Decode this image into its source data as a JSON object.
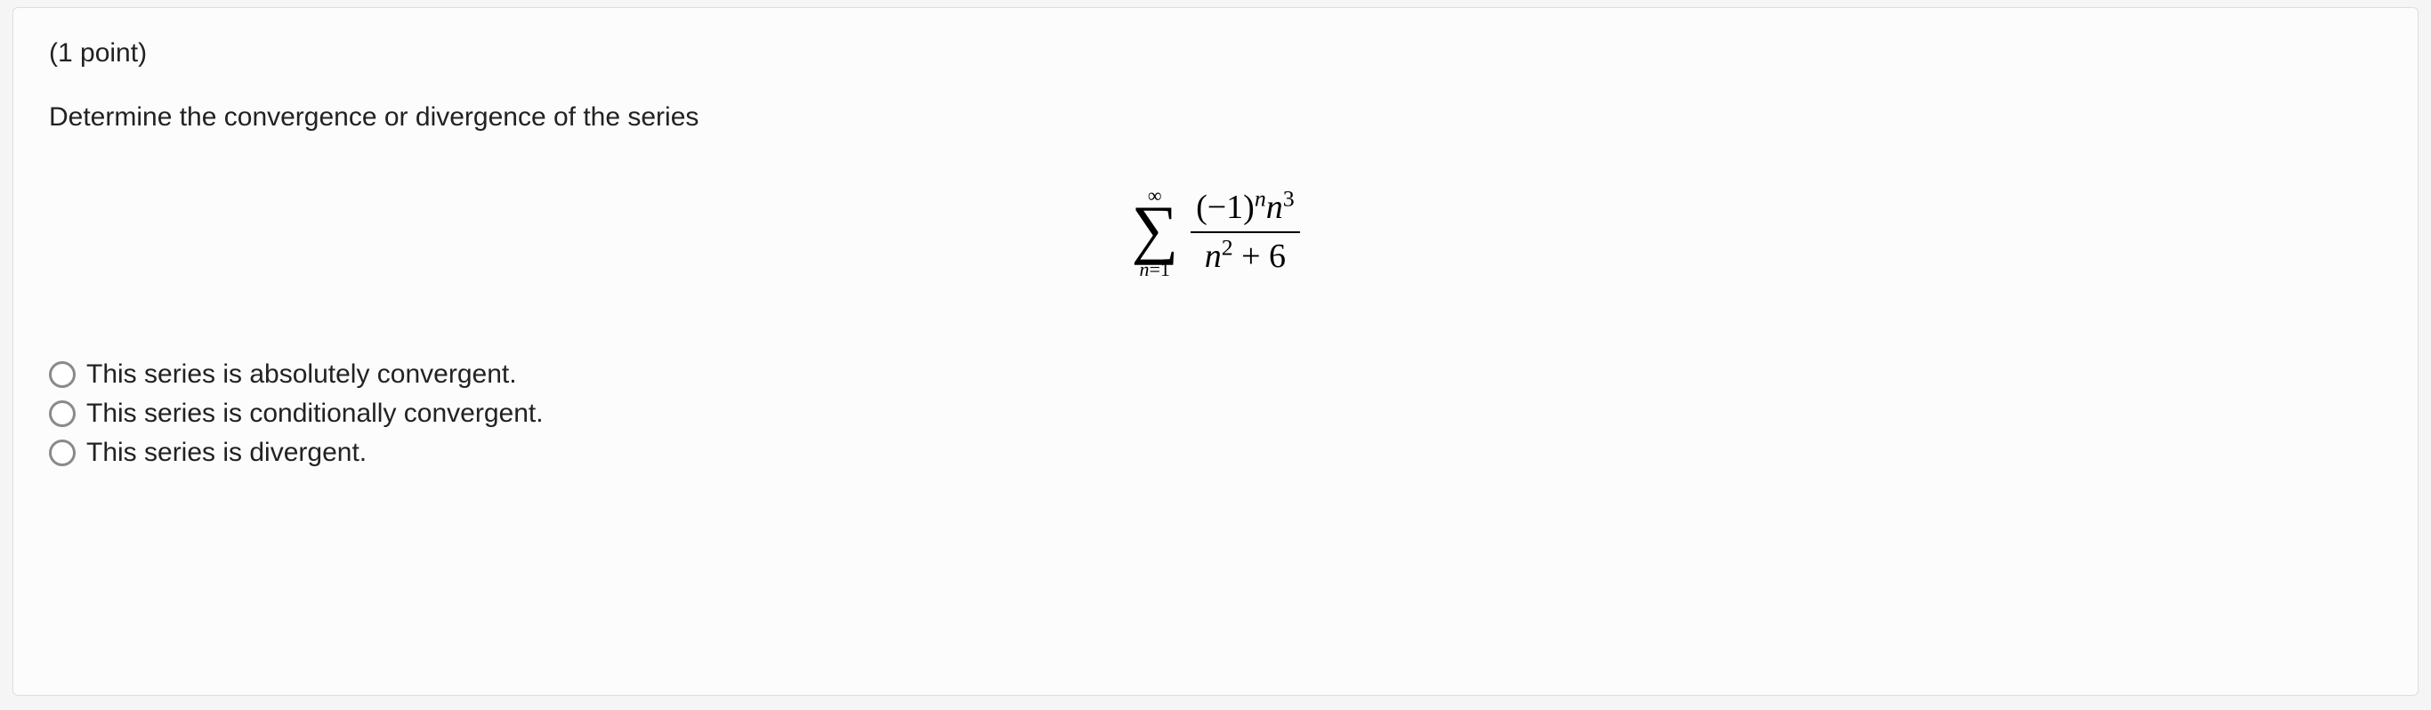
{
  "question": {
    "points_label": "(1 point)",
    "prompt": "Determine the convergence or divergence of the series",
    "formula": {
      "sum_upper": "∞",
      "sum_lower_var": "n",
      "sum_lower_eq": "=",
      "sum_lower_val": "1",
      "numerator": {
        "base_open": "(",
        "neg_one": "−1",
        "base_close": ")",
        "exp1": "n",
        "var": "n",
        "exp2": "3"
      },
      "denominator": {
        "var": "n",
        "exp": "2",
        "plus": " + ",
        "constant": "6"
      }
    },
    "options": [
      {
        "label": "This series is absolutely convergent."
      },
      {
        "label": "This series is conditionally convergent."
      },
      {
        "label": "This series is divergent."
      }
    ]
  },
  "colors": {
    "page_bg": "#f5f5f5",
    "container_bg": "#fcfcfc",
    "border": "#dddddd",
    "text": "#222222",
    "radio_border": "#8a8a8a"
  }
}
